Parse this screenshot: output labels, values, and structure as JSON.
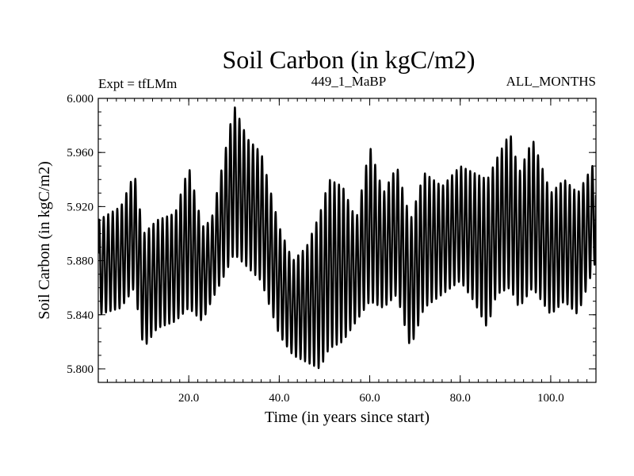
{
  "chart_data": {
    "type": "line",
    "title": "Soil Carbon (in kgC/m2)",
    "subtitle_left": "Expt = tfLMm",
    "subtitle_center": "449_1_MaBP",
    "subtitle_right": "ALL_MONTHS",
    "xlabel": "Time (in years since start)",
    "ylabel": "Soil Carbon (in kgC/m2)",
    "xlim": [
      0,
      110
    ],
    "ylim": [
      5.79,
      6.0
    ],
    "x_ticks": [
      20,
      40,
      60,
      80,
      100
    ],
    "x_tick_labels": [
      "20.0",
      "40.0",
      "60.0",
      "80.0",
      "100.0"
    ],
    "y_ticks": [
      5.8,
      5.84,
      5.88,
      5.92,
      5.96,
      6.0
    ],
    "y_tick_labels": [
      "5.800",
      "5.840",
      "5.880",
      "5.920",
      "5.960",
      "6.000"
    ],
    "series": [
      {
        "name": "Soil Carbon",
        "cycle_period_years": 1,
        "envelope_years": [
          0,
          5,
          8,
          10,
          13,
          17,
          20,
          23,
          25,
          28,
          30,
          33,
          36,
          40,
          43,
          46,
          49,
          51,
          54,
          57,
          60,
          63,
          66,
          69,
          72,
          76,
          80,
          83,
          86,
          88,
          91,
          93,
          96,
          100,
          103,
          106,
          110
        ],
        "envelope_max": [
          5.91,
          5.92,
          5.945,
          5.9,
          5.91,
          5.915,
          5.95,
          5.905,
          5.91,
          5.96,
          5.995,
          5.97,
          5.96,
          5.905,
          5.88,
          5.89,
          5.915,
          5.94,
          5.935,
          5.91,
          5.965,
          5.93,
          5.95,
          5.91,
          5.945,
          5.935,
          5.95,
          5.945,
          5.94,
          5.955,
          5.975,
          5.945,
          5.97,
          5.93,
          5.94,
          5.93,
          5.955
        ],
        "envelope_min": [
          5.84,
          5.845,
          5.86,
          5.815,
          5.83,
          5.835,
          5.845,
          5.835,
          5.85,
          5.87,
          5.885,
          5.875,
          5.865,
          5.825,
          5.81,
          5.805,
          5.8,
          5.815,
          5.82,
          5.835,
          5.85,
          5.845,
          5.855,
          5.815,
          5.845,
          5.855,
          5.865,
          5.85,
          5.83,
          5.855,
          5.86,
          5.845,
          5.86,
          5.84,
          5.85,
          5.84,
          5.88
        ]
      }
    ]
  }
}
